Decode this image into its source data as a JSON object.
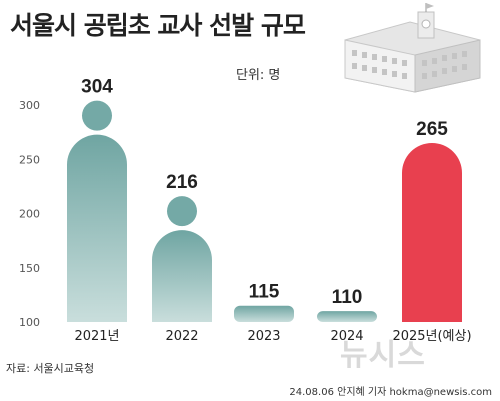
{
  "title": "서울시 공립초 교사 선발 규모",
  "unit": "단위: 명",
  "source": "자료: 서울시교육청",
  "credit": "24.08.06 안지혜 기자  hokma@newsis.com",
  "logo": "뉴시스",
  "chart_data": {
    "type": "bar",
    "categories": [
      "2021년",
      "2022",
      "2023",
      "2024",
      "2025년(예상)"
    ],
    "values": [
      304,
      216,
      115,
      110,
      265
    ],
    "ylim": [
      100,
      300
    ],
    "yticks": [
      100,
      150,
      200,
      250,
      300
    ],
    "colors": [
      "#7fb0ad",
      "#7fb0ad",
      "#7fb0ad",
      "#7fb0ad",
      "#e8404f"
    ],
    "grid": false
  }
}
